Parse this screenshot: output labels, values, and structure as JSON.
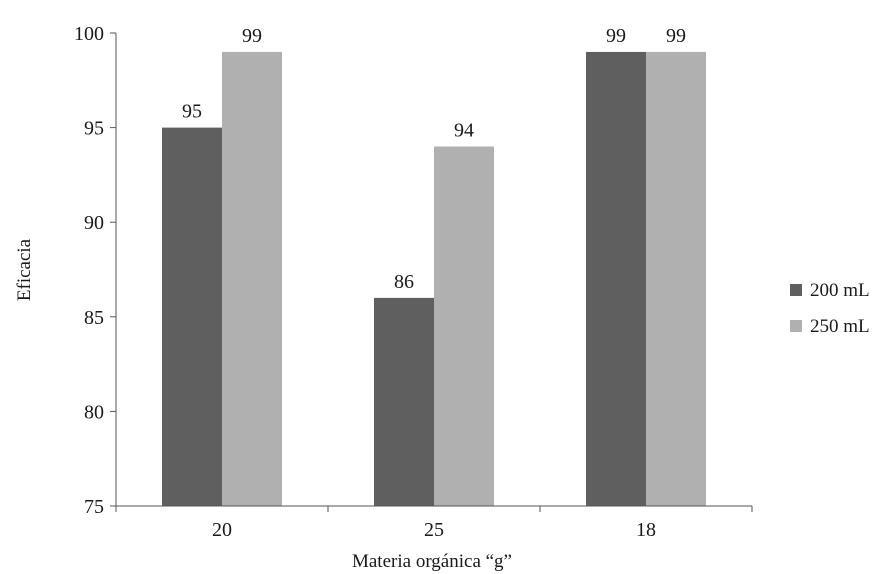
{
  "chart_data": {
    "type": "bar",
    "categories": [
      "20",
      "25",
      "18"
    ],
    "series": [
      {
        "name": "200 mL",
        "values": [
          95,
          86,
          99
        ],
        "color": "#5f5f5f"
      },
      {
        "name": "250 mL",
        "values": [
          99,
          94,
          99
        ],
        "color": "#b0b0b0"
      }
    ],
    "xlabel": "Materia orgánica “g”",
    "ylabel": "Eficacia",
    "ylim": [
      75,
      100
    ],
    "yticks": [
      75,
      80,
      85,
      90,
      95,
      100
    ],
    "grid": false,
    "legend_position": "right",
    "data_labels": true
  }
}
